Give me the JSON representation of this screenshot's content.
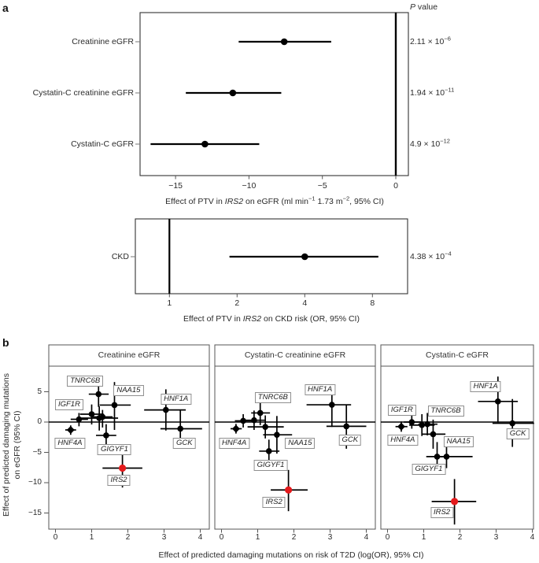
{
  "figure": {
    "panel_a_marker": "a",
    "panel_b_marker": "b"
  },
  "chart_data": [
    {
      "id": "forest_egfr",
      "type": "forest",
      "scale": "linear",
      "p_value_header": "*P* value",
      "xlabel": "Effect of PTV in *IRS2* on eGFR (ml min^{−1} 1.73 m^{−2}, 95% CI)",
      "x_ticks": [
        -15,
        -10,
        -5,
        0
      ],
      "x_range": [
        -17.4,
        0.85
      ],
      "ref_line_x": 0,
      "rows": [
        {
          "label": "Creatinine eGFR",
          "estimate": -7.6,
          "ci": [
            -10.7,
            -4.4
          ],
          "p": "2.11 × 10^{−6}"
        },
        {
          "label": "Cystatin-C creatinine eGFR",
          "estimate": -11.1,
          "ci": [
            -14.3,
            -7.8
          ],
          "p": "1.94 × 10^{−11}"
        },
        {
          "label": "Cystatin-C eGFR",
          "estimate": -13.0,
          "ci": [
            -16.7,
            -9.3
          ],
          "p": "4.9 × 10^{−12}"
        }
      ]
    },
    {
      "id": "forest_ckd",
      "type": "forest",
      "scale": "log2",
      "xlabel": "Effect of PTV in *IRS2* on CKD risk (OR, 95% CI)",
      "x_ticks": [
        1,
        2,
        4,
        8
      ],
      "x_range": [
        0.71,
        11.4
      ],
      "ref_line_x": 1,
      "rows": [
        {
          "label": "CKD",
          "estimate": 4.0,
          "ci": [
            1.85,
            8.5
          ],
          "p": "4.38 × 10^{−4}"
        }
      ]
    },
    {
      "id": "scatter_t2d_vs_egfr",
      "type": "scatter",
      "xlabel": "Effect of predicted damaging mutations on risk of T2D (log(OR), 95% CI)",
      "ylabel_line1": "Effect of predicted damaging mutations",
      "ylabel_line2": "on eGFR (95% CI)",
      "x_ticks": [
        0,
        1,
        2,
        3,
        4
      ],
      "y_ticks": [
        5,
        0,
        -5,
        -10,
        -15
      ],
      "xlim": [
        -0.18,
        4.05
      ],
      "ylim": [
        -17.7,
        8.8
      ],
      "point_color": "#000000",
      "highlight_gene": "IRS2",
      "highlight_color": "#e41a1c",
      "panels": [
        {
          "title": "Creatinine eGFR",
          "points": [
            {
              "gene": "HNF4A",
              "marker": "diamond",
              "x": 0.42,
              "y": -1.3,
              "xlo": 0.27,
              "xhi": 0.57,
              "ylo": -2.1,
              "yhi": -0.55
            },
            {
              "gene": "IGF1R",
              "marker": "circle",
              "x": 0.65,
              "y": 0.45,
              "xlo": 0.42,
              "xhi": 0.9,
              "ylo": -0.7,
              "yhi": 1.5
            },
            {
              "gene": "",
              "marker": "circle",
              "x": 1.0,
              "y": 1.3,
              "xlo": 0.68,
              "xhi": 1.33,
              "ylo": -0.4,
              "yhi": 2.9
            },
            {
              "gene": "TNRC6B",
              "marker": "circle",
              "x": 1.19,
              "y": 4.6,
              "xlo": 0.92,
              "xhi": 1.47,
              "ylo": 2.5,
              "yhi": 6.7
            },
            {
              "gene": "",
              "marker": "circle",
              "x": 1.21,
              "y": 0.65,
              "xlo": 0.7,
              "xhi": 1.73,
              "ylo": -1.4,
              "yhi": 2.6
            },
            {
              "gene": "",
              "marker": "circle",
              "x": 1.3,
              "y": 0.85,
              "xlo": 1.02,
              "xhi": 1.58,
              "ylo": -0.9,
              "yhi": 2.0
            },
            {
              "gene": "NAA15",
              "marker": "circle",
              "x": 1.63,
              "y": 2.8,
              "xlo": 1.22,
              "xhi": 2.08,
              "ylo": -1.3,
              "yhi": 6.6
            },
            {
              "gene": "GIGYF1",
              "marker": "circle",
              "x": 1.4,
              "y": -2.2,
              "xlo": 1.12,
              "xhi": 1.68,
              "ylo": -4.0,
              "yhi": -0.35
            },
            {
              "gene": "HNF1A",
              "marker": "circle",
              "x": 3.05,
              "y": 2.0,
              "xlo": 2.45,
              "xhi": 3.6,
              "ylo": -1.4,
              "yhi": 5.4
            },
            {
              "gene": "GCK",
              "marker": "circle",
              "x": 3.45,
              "y": -1.1,
              "xlo": 2.9,
              "xhi": 4.05,
              "ylo": -4.2,
              "yhi": 2.0
            },
            {
              "gene": "IRS2",
              "marker": "circle",
              "highlight": true,
              "x": 1.85,
              "y": -7.6,
              "xlo": 1.3,
              "xhi": 2.4,
              "ylo": -10.8,
              "yhi": -4.6
            }
          ],
          "labels": [
            {
              "text": "TNRC6B",
              "x": 0.82,
              "y": 6.7
            },
            {
              "text": "NAA15",
              "x": 2.02,
              "y": 5.2
            },
            {
              "text": "IGF1R",
              "x": 0.38,
              "y": 2.8
            },
            {
              "text": "HNF4A",
              "x": 0.4,
              "y": -3.5
            },
            {
              "text": "GIGYF1",
              "x": 1.63,
              "y": -4.5
            },
            {
              "text": "HNF1A",
              "x": 3.33,
              "y": 3.8
            },
            {
              "text": "GCK",
              "x": 3.56,
              "y": -3.5
            },
            {
              "text": "IRS2",
              "x": 1.75,
              "y": -9.6
            }
          ]
        },
        {
          "title": "Cystatin-C creatinine eGFR",
          "points": [
            {
              "gene": "HNF4A",
              "marker": "diamond",
              "x": 0.4,
              "y": -1.1,
              "xlo": 0.25,
              "xhi": 0.56,
              "ylo": -1.9,
              "yhi": -0.3
            },
            {
              "gene": "",
              "marker": "circle",
              "x": 0.6,
              "y": 0.2,
              "xlo": 0.37,
              "xhi": 0.84,
              "ylo": -0.9,
              "yhi": 1.3
            },
            {
              "gene": "",
              "marker": "circle",
              "x": 0.9,
              "y": 0.3,
              "xlo": 0.6,
              "xhi": 1.2,
              "ylo": -1.3,
              "yhi": 1.9
            },
            {
              "gene": "TNRC6B",
              "marker": "circle",
              "x": 1.07,
              "y": 1.5,
              "xlo": 0.82,
              "xhi": 1.34,
              "ylo": -0.5,
              "yhi": 3.4
            },
            {
              "gene": "",
              "marker": "circle",
              "x": 1.21,
              "y": -0.8,
              "xlo": 0.72,
              "xhi": 1.72,
              "ylo": -2.7,
              "yhi": 1.1
            },
            {
              "gene": "NAA15",
              "marker": "circle",
              "x": 1.53,
              "y": -2.1,
              "xlo": 1.15,
              "xhi": 1.95,
              "ylo": -5.2,
              "yhi": 1.0
            },
            {
              "gene": "GIGYF1",
              "marker": "circle",
              "x": 1.31,
              "y": -4.8,
              "xlo": 1.04,
              "xhi": 1.6,
              "ylo": -6.7,
              "yhi": -2.9
            },
            {
              "gene": "HNF1A",
              "marker": "circle",
              "x": 3.05,
              "y": 2.85,
              "xlo": 2.35,
              "xhi": 3.58,
              "ylo": -0.8,
              "yhi": 6.2
            },
            {
              "gene": "GCK",
              "marker": "circle",
              "x": 3.45,
              "y": -0.7,
              "xlo": 2.9,
              "xhi": 4.0,
              "ylo": -4.4,
              "yhi": 2.9
            },
            {
              "gene": "IRS2",
              "marker": "circle",
              "highlight": true,
              "x": 1.85,
              "y": -11.2,
              "xlo": 1.36,
              "xhi": 2.38,
              "ylo": -14.7,
              "yhi": -7.9
            }
          ],
          "labels": [
            {
              "text": "HNF1A",
              "x": 2.72,
              "y": 5.3
            },
            {
              "text": "TNRC6B",
              "x": 1.42,
              "y": 4.0
            },
            {
              "text": "HNF4A",
              "x": 0.35,
              "y": -3.5
            },
            {
              "text": "NAA15",
              "x": 2.17,
              "y": -3.5
            },
            {
              "text": "GIGYF1",
              "x": 1.36,
              "y": -7.1
            },
            {
              "text": "GCK",
              "x": 3.55,
              "y": -3.0
            },
            {
              "text": "IRS2",
              "x": 1.45,
              "y": -13.3
            }
          ]
        },
        {
          "title": "Cystatin-C eGFR",
          "points": [
            {
              "gene": "HNF4A",
              "marker": "diamond",
              "x": 0.38,
              "y": -0.75,
              "xlo": 0.22,
              "xhi": 0.55,
              "ylo": -1.6,
              "yhi": 0.1
            },
            {
              "gene": "IGF1R",
              "marker": "circle",
              "x": 0.67,
              "y": 0.0,
              "xlo": 0.45,
              "xhi": 0.92,
              "ylo": -1.1,
              "yhi": 1.1
            },
            {
              "gene": "",
              "marker": "circle",
              "x": 0.95,
              "y": -0.5,
              "xlo": 0.6,
              "xhi": 1.3,
              "ylo": -2.3,
              "yhi": 1.3
            },
            {
              "gene": "TNRC6B",
              "marker": "circle",
              "x": 1.1,
              "y": -0.35,
              "xlo": 0.85,
              "xhi": 1.38,
              "ylo": -2.2,
              "yhi": 1.5
            },
            {
              "gene": "NAA15",
              "marker": "circle",
              "x": 1.26,
              "y": -2.0,
              "xlo": 0.95,
              "xhi": 1.6,
              "ylo": -4.4,
              "yhi": 0.4
            },
            {
              "gene": "GIGYF1",
              "marker": "circle",
              "x": 1.37,
              "y": -5.7,
              "xlo": 1.07,
              "xhi": 1.68,
              "ylo": -8.1,
              "yhi": -3.3
            },
            {
              "gene": "",
              "marker": "circle",
              "x": 1.63,
              "y": -5.7,
              "xlo": 1.28,
              "xhi": 2.35,
              "ylo": -7.6,
              "yhi": -3.8
            },
            {
              "gene": "HNF1A",
              "marker": "circle",
              "x": 3.05,
              "y": 3.4,
              "xlo": 2.5,
              "xhi": 3.6,
              "ylo": -0.1,
              "yhi": 7.5
            },
            {
              "gene": "GCK",
              "marker": "circle",
              "x": 3.45,
              "y": -0.2,
              "xlo": 2.9,
              "xhi": 4.05,
              "ylo": -4.1,
              "yhi": 3.8
            },
            {
              "gene": "IRS2",
              "marker": "circle",
              "highlight": true,
              "x": 1.85,
              "y": -13.1,
              "xlo": 1.22,
              "xhi": 2.45,
              "ylo": -16.9,
              "yhi": -9.4
            }
          ],
          "labels": [
            {
              "text": "HNF1A",
              "x": 2.71,
              "y": 5.9
            },
            {
              "text": "IGF1R",
              "x": 0.4,
              "y": 2.0
            },
            {
              "text": "TNRC6B",
              "x": 1.61,
              "y": 1.8
            },
            {
              "text": "HNF4A",
              "x": 0.42,
              "y": -3.0
            },
            {
              "text": "NAA15",
              "x": 1.96,
              "y": -3.2
            },
            {
              "text": "GIGYF1",
              "x": 1.14,
              "y": -7.8
            },
            {
              "text": "GCK",
              "x": 3.6,
              "y": -1.9
            },
            {
              "text": "IRS2",
              "x": 1.5,
              "y": -14.9
            }
          ]
        }
      ]
    }
  ]
}
